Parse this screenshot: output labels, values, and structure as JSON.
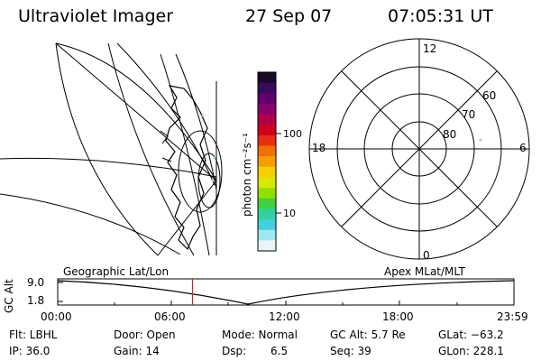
{
  "header": {
    "title": "Ultraviolet Imager",
    "date": "27 Sep 07",
    "time": "07:05:31 UT"
  },
  "colorbar": {
    "axis_label": "photon cm⁻²s⁻¹",
    "tick_labels": [
      "100",
      "10"
    ],
    "colors": [
      "#1a0a2a",
      "#3a0a5a",
      "#600070",
      "#8a006a",
      "#b0004a",
      "#d00020",
      "#e63010",
      "#f07000",
      "#f5a000",
      "#f5d000",
      "#d8e800",
      "#90e000",
      "#40d040",
      "#30d0a0",
      "#40d0e0",
      "#a0e8f0",
      "#e6f6f8"
    ]
  },
  "left_panel": {
    "name": "geographic-map"
  },
  "polar_plot": {
    "mlt_labels": [
      "12",
      "18",
      "6",
      "0"
    ],
    "lat_labels": [
      "60",
      "70",
      "80"
    ]
  },
  "timeline": {
    "left_title": "Geographic Lat/Lon",
    "right_title": "Apex MLat/MLT",
    "ylabel": "GC Alt",
    "yticks": [
      "9.0",
      "1.8"
    ],
    "xticks": [
      "00:00",
      "06:00",
      "12:00",
      "18:00",
      "23:59"
    ],
    "marker_time_hours": 7.09,
    "marker_color": "#d02020"
  },
  "status": {
    "flt": "Flt: LBHL",
    "ip": "IP: 36.0",
    "door": "Door: Open",
    "gain": "Gain: 14",
    "mode": "Mode: Normal",
    "dsp_label": "Dsp:",
    "dsp_value": "6.5",
    "gcalt": "GC Alt: 5.7 Re",
    "seq": "Seq: 39",
    "glat": "GLat: −63.2",
    "glon": "GLon: 228.1"
  }
}
